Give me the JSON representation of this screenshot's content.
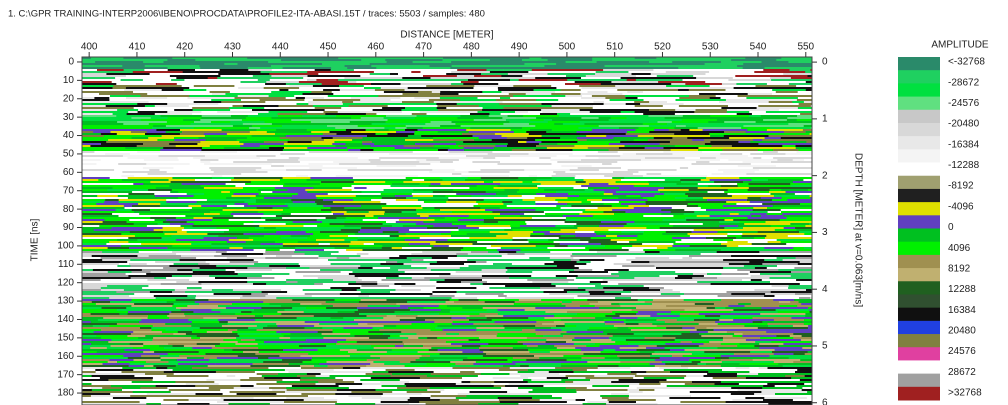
{
  "chart_data": {
    "type": "heatmap",
    "title": "1. C:\\GPR TRAINING-INTERP2006\\IBENO\\PROCDATA\\PROFILE2-ITA-ABASI.15T / traces: 5503 / samples: 480",
    "x_label": "DISTANCE [METER]",
    "y_label": "TIME [ns]",
    "y2_label": "DEPTH [METER] at v=0.063[m/ns]",
    "xlim": [
      398.5,
      551.3
    ],
    "xticks": [
      400,
      410,
      420,
      430,
      440,
      450,
      460,
      470,
      480,
      490,
      500,
      510,
      520,
      530,
      540,
      550
    ],
    "ylim": [
      -2.7,
      186.5
    ],
    "yticks": [
      0,
      10,
      20,
      30,
      40,
      50,
      60,
      70,
      80,
      90,
      100,
      110,
      120,
      130,
      140,
      150,
      160,
      170,
      180
    ],
    "y2lim": [
      -0.09,
      6.04
    ],
    "y2ticks": [
      0,
      1,
      2,
      3,
      4,
      5,
      6
    ],
    "colorbar": {
      "title": "AMPLITUDE",
      "labels": [
        "<-32768",
        "-28672",
        "-24576",
        "-20480",
        "-16384",
        "-12288",
        "-8192",
        "-4096",
        "0",
        "4096",
        "8192",
        "12288",
        "16384",
        "20480",
        "24576",
        "28672",
        ">32768"
      ],
      "colors": [
        "#2a8a6a",
        "#1fd060",
        "#00e040",
        "#60e080",
        "#c8c8c8",
        "#d8d8d8",
        "#e8e8e8",
        "#f4f4f4",
        "#ffffff",
        "#a0a070",
        "#202020",
        "#e0e000",
        "#6040c0",
        "#00c020",
        "#00f000",
        "#a09050",
        "#c0b070",
        "#206020",
        "#305030",
        "#101010",
        "#2040e0",
        "#808040",
        "#e040a0",
        "#ffffff",
        "#a0a0a0",
        "#a02020"
      ]
    }
  }
}
